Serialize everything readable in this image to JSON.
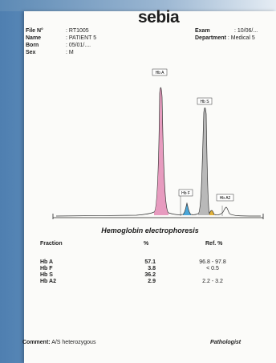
{
  "header": {
    "logo": "sebia",
    "file_no_label": "File N°",
    "file_no": ": RT1005",
    "name_label": "Name",
    "name": ": PATIENT 5",
    "born_label": "Born",
    "born": ": 05/01/....",
    "sex_label": "Sex",
    "sex": ": M",
    "exam_label": "Exam",
    "exam": ": 10/06/...",
    "department_label": "Department",
    "department": ": Medical 5"
  },
  "peaks": {
    "hb_a": "Hb A",
    "hb_s": "Hb S",
    "hb_f": "Hb F",
    "hb_a2": "Hb A2",
    "colors": {
      "hb_a": "#e79bbf",
      "hb_f": "#4aa6d8",
      "hb_s": "#b9b9b9",
      "hb_a2": "#e2b23a"
    }
  },
  "report": {
    "title": "Hemoglobin electrophoresis",
    "col_fraction": "Fraction",
    "col_percent": "%",
    "col_ref": "Ref.  %",
    "rows": [
      {
        "fraction": "Hb A",
        "percent": "57.1",
        "ref": "96.8 - 97.8"
      },
      {
        "fraction": "Hb F",
        "percent": "3.8",
        "ref": "< 0.5"
      },
      {
        "fraction": "Hb S",
        "percent": "36.2",
        "ref": ""
      },
      {
        "fraction": "Hb A2",
        "percent": "2.9",
        "ref": "2.2 - 3.2"
      }
    ]
  },
  "footer": {
    "comment_label": "Comment:",
    "comment": "A/S heterozygous",
    "pathologist": "Pathologist"
  }
}
